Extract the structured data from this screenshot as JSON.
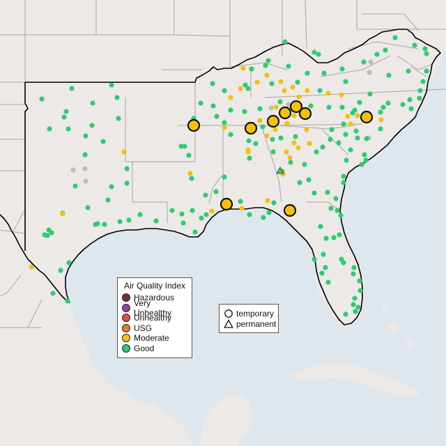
{
  "colors": {
    "water": "#dfe7ee",
    "land": "#ece9e6",
    "border": "#9e9e9e",
    "region_outline": "#000000",
    "good": "#2ecc71",
    "moderate": "#f2c10f",
    "usg": "#e67e22",
    "unhealthy": "#e74c3c",
    "very_unhealthy": "#8e44ad",
    "hazardous": "#7b2c2c",
    "no_data": "#bdbdbd"
  },
  "legend": {
    "title": "Air Quality Index",
    "categories": [
      {
        "label": "Hazardous",
        "color": "#7b2c2c"
      },
      {
        "label": "Very Unhealthy",
        "color": "#8e44ad"
      },
      {
        "label": "Unhealthy",
        "color": "#e74c3c"
      },
      {
        "label": "USG",
        "color": "#e67e22"
      },
      {
        "label": "Moderate",
        "color": "#f2c10f"
      },
      {
        "label": "Good",
        "color": "#2ecc71"
      }
    ]
  },
  "monitor_types": {
    "temporary": "temporary",
    "permanent": "permanent"
  },
  "monitors": {
    "temporary_moderate": [
      [
        278,
        180
      ],
      [
        360,
        184
      ],
      [
        392,
        174
      ],
      [
        409,
        162
      ],
      [
        425,
        153
      ],
      [
        438,
        163
      ],
      [
        526,
        168
      ],
      [
        325,
        293
      ],
      [
        416,
        302
      ]
    ],
    "good": [
      [
        60,
        142
      ],
      [
        103,
        127
      ],
      [
        133,
        148
      ],
      [
        160,
        122
      ],
      [
        168,
        140
      ],
      [
        95,
        160
      ],
      [
        92,
        168
      ],
      [
        98,
        185
      ],
      [
        71,
        185
      ],
      [
        132,
        180
      ],
      [
        123,
        195
      ],
      [
        170,
        170
      ],
      [
        148,
        203
      ],
      [
        122,
        222
      ],
      [
        182,
        242
      ],
      [
        182,
        263
      ],
      [
        160,
        268
      ],
      [
        155,
        287
      ],
      [
        108,
        267
      ],
      [
        126,
        298
      ],
      [
        90,
        306
      ],
      [
        70,
        330
      ],
      [
        68,
        338
      ],
      [
        74,
        334
      ],
      [
        64,
        337
      ],
      [
        99,
        377
      ],
      [
        87,
        388
      ],
      [
        97,
        432
      ],
      [
        76,
        421
      ],
      [
        140,
        321
      ],
      [
        150,
        322
      ],
      [
        137,
        322
      ],
      [
        172,
        318
      ],
      [
        185,
        316
      ],
      [
        201,
        308
      ],
      [
        224,
        317
      ],
      [
        247,
        302
      ],
      [
        261,
        307
      ],
      [
        276,
        302
      ],
      [
        289,
        313
      ],
      [
        296,
        308
      ],
      [
        263,
        320
      ],
      [
        280,
        333
      ],
      [
        275,
        256
      ],
      [
        271,
        223
      ],
      [
        265,
        210
      ],
      [
        260,
        210
      ],
      [
        278,
        170
      ],
      [
        288,
        148
      ],
      [
        305,
        120
      ],
      [
        322,
        130
      ],
      [
        352,
        122
      ],
      [
        356,
        127
      ],
      [
        361,
        99
      ],
      [
        381,
        94
      ],
      [
        385,
        87
      ],
      [
        409,
        60
      ],
      [
        414,
        95
      ],
      [
        451,
        75
      ],
      [
        457,
        78
      ],
      [
        465,
        105
      ],
      [
        491,
        99
      ],
      [
        496,
        117
      ],
      [
        522,
        89
      ],
      [
        541,
        78
      ],
      [
        553,
        72
      ],
      [
        567,
        54
      ],
      [
        595,
        65
      ],
      [
        610,
        70
      ],
      [
        612,
        77
      ],
      [
        612,
        102
      ],
      [
        607,
        117
      ],
      [
        603,
        130
      ],
      [
        586,
        102
      ],
      [
        558,
        108
      ],
      [
        588,
        143
      ],
      [
        602,
        141
      ],
      [
        590,
        156
      ],
      [
        578,
        150
      ],
      [
        557,
        148
      ],
      [
        550,
        154
      ],
      [
        546,
        161
      ],
      [
        531,
        135
      ],
      [
        516,
        147
      ],
      [
        509,
        158
      ],
      [
        493,
        178
      ],
      [
        476,
        186
      ],
      [
        474,
        200
      ],
      [
        486,
        205
      ],
      [
        496,
        193
      ],
      [
        511,
        188
      ],
      [
        513,
        198
      ],
      [
        503,
        215
      ],
      [
        523,
        222
      ],
      [
        546,
        185
      ],
      [
        525,
        230
      ],
      [
        519,
        236
      ],
      [
        497,
        230
      ],
      [
        493,
        253
      ],
      [
        493,
        262
      ],
      [
        484,
        302
      ],
      [
        489,
        309
      ],
      [
        487,
        337
      ],
      [
        479,
        341
      ],
      [
        468,
        342
      ],
      [
        460,
        325
      ],
      [
        464,
        365
      ],
      [
        451,
        372
      ],
      [
        462,
        392
      ],
      [
        467,
        384
      ],
      [
        471,
        405
      ],
      [
        490,
        372
      ],
      [
        493,
        377
      ],
      [
        508,
        384
      ],
      [
        507,
        393
      ],
      [
        516,
        403
      ],
      [
        517,
        417
      ],
      [
        509,
        428
      ],
      [
        507,
        437
      ],
      [
        514,
        441
      ],
      [
        510,
        447
      ],
      [
        496,
        451
      ],
      [
        405,
        246
      ],
      [
        417,
        233
      ],
      [
        437,
        236
      ],
      [
        443,
        258
      ],
      [
        451,
        277
      ],
      [
        470,
        276
      ],
      [
        475,
        299
      ],
      [
        482,
        285
      ],
      [
        430,
        262
      ],
      [
        378,
        312
      ],
      [
        358,
        308
      ],
      [
        345,
        289
      ],
      [
        322,
        254
      ],
      [
        310,
        275
      ],
      [
        295,
        280
      ],
      [
        393,
        291
      ],
      [
        386,
        305
      ],
      [
        358,
        227
      ],
      [
        367,
        206
      ],
      [
        391,
        200
      ],
      [
        392,
        218
      ],
      [
        357,
        202
      ],
      [
        377,
        182
      ],
      [
        331,
        193
      ],
      [
        322,
        176
      ],
      [
        311,
        167
      ],
      [
        306,
        152
      ],
      [
        331,
        158
      ],
      [
        351,
        160
      ],
      [
        373,
        156
      ],
      [
        402,
        146
      ],
      [
        390,
        120
      ],
      [
        427,
        118
      ],
      [
        441,
        105
      ],
      [
        459,
        130
      ],
      [
        446,
        152
      ],
      [
        472,
        154
      ],
      [
        491,
        154
      ],
      [
        506,
        162
      ],
      [
        526,
        199
      ],
      [
        463,
        211
      ],
      [
        454,
        218
      ],
      [
        424,
        196
      ],
      [
        403,
        198
      ]
    ],
    "small_moderate": [
      [
        178,
        218
      ],
      [
        90,
        307
      ],
      [
        45,
        383
      ],
      [
        273,
        249
      ],
      [
        304,
        303
      ],
      [
        347,
        299
      ],
      [
        384,
        288
      ],
      [
        356,
        218
      ],
      [
        373,
        173
      ],
      [
        331,
        140
      ],
      [
        345,
        127
      ],
      [
        369,
        118
      ],
      [
        349,
        98
      ],
      [
        403,
        117
      ],
      [
        420,
        125
      ],
      [
        429,
        139
      ],
      [
        408,
        130
      ],
      [
        441,
        130
      ],
      [
        471,
        134
      ],
      [
        490,
        136
      ],
      [
        499,
        167
      ],
      [
        503,
        178
      ],
      [
        513,
        166
      ],
      [
        547,
        172
      ],
      [
        444,
        206
      ],
      [
        422,
        205
      ],
      [
        428,
        212
      ],
      [
        411,
        218
      ],
      [
        416,
        226
      ],
      [
        406,
        250
      ],
      [
        395,
        186
      ],
      [
        383,
        195
      ],
      [
        356,
        215
      ],
      [
        322,
        183
      ],
      [
        383,
        108
      ],
      [
        440,
        186
      ],
      [
        432,
        161
      ],
      [
        422,
        166
      ],
      [
        412,
        177
      ],
      [
        396,
        154
      ]
    ],
    "gray": [
      [
        105,
        244
      ],
      [
        122,
        242
      ],
      [
        123,
        260
      ],
      [
        529,
        198
      ],
      [
        530,
        104
      ],
      [
        532,
        89
      ],
      [
        414,
        150
      ],
      [
        389,
        155
      ]
    ],
    "good_triangles": [
      [
        402,
        245
      ]
    ]
  }
}
